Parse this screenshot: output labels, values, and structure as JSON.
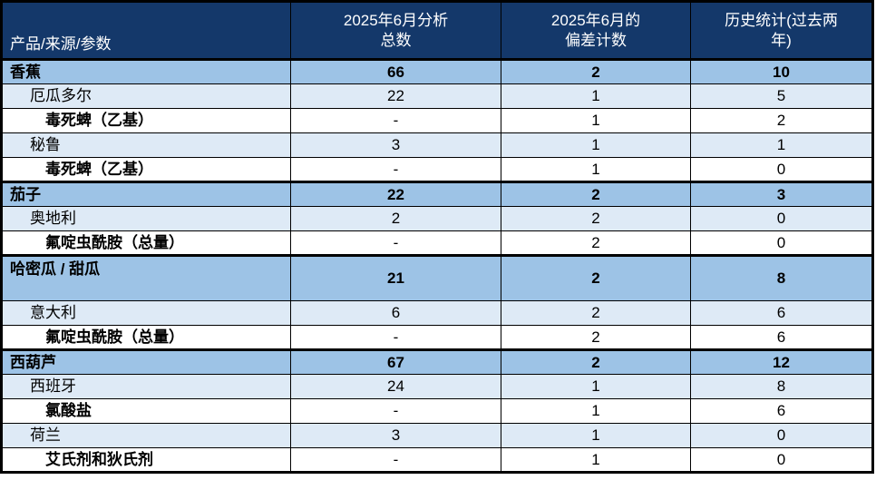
{
  "colors": {
    "header_bg": "#14386A",
    "product_row_bg": "#9DC3E6",
    "country_row_bg": "#DEEAF6",
    "parameter_row_bg": "#FFFFFF",
    "border": "#000000",
    "header_text": "#FFFFFF",
    "body_text": "#000000"
  },
  "table": {
    "columns": [
      {
        "label": "产品/来源/参数"
      },
      {
        "label": "2025年6月分析\n总数"
      },
      {
        "label": "2025年6月的\n偏差计数"
      },
      {
        "label": "历史统计(过去两\n年)"
      }
    ],
    "rows": [
      {
        "type": "product",
        "section": true,
        "tall": false,
        "label": "香蕉",
        "analyzed": "66",
        "deviations": "2",
        "historical": "10"
      },
      {
        "type": "country",
        "section": false,
        "tall": false,
        "label": "厄瓜多尔",
        "analyzed": "22",
        "deviations": "1",
        "historical": "5"
      },
      {
        "type": "parameter",
        "section": false,
        "tall": false,
        "label": "毒死蜱（乙基）",
        "analyzed": "-",
        "deviations": "1",
        "historical": "2"
      },
      {
        "type": "country",
        "section": false,
        "tall": false,
        "label": "秘鲁",
        "analyzed": "3",
        "deviations": "1",
        "historical": "1"
      },
      {
        "type": "parameter",
        "section": false,
        "tall": false,
        "label": "毒死蜱（乙基）",
        "analyzed": "-",
        "deviations": "1",
        "historical": "0"
      },
      {
        "type": "product",
        "section": true,
        "tall": false,
        "label": "茄子",
        "analyzed": "22",
        "deviations": "2",
        "historical": "3"
      },
      {
        "type": "country",
        "section": false,
        "tall": false,
        "label": "奥地利",
        "analyzed": "2",
        "deviations": "2",
        "historical": "0"
      },
      {
        "type": "parameter",
        "section": false,
        "tall": false,
        "label": "氟啶虫酰胺（总量）",
        "analyzed": "-",
        "deviations": "2",
        "historical": "0"
      },
      {
        "type": "product",
        "section": true,
        "tall": true,
        "label": "哈密瓜 / 甜瓜",
        "analyzed": "21",
        "deviations": "2",
        "historical": "8"
      },
      {
        "type": "country",
        "section": false,
        "tall": false,
        "label": "意大利",
        "analyzed": "6",
        "deviations": "2",
        "historical": "6"
      },
      {
        "type": "parameter",
        "section": false,
        "tall": false,
        "label": "氟啶虫酰胺（总量）",
        "analyzed": "-",
        "deviations": "2",
        "historical": "6"
      },
      {
        "type": "product",
        "section": true,
        "tall": false,
        "label": "西葫芦",
        "analyzed": "67",
        "deviations": "2",
        "historical": "12"
      },
      {
        "type": "country",
        "section": false,
        "tall": false,
        "label": "西班牙",
        "analyzed": "24",
        "deviations": "1",
        "historical": "8"
      },
      {
        "type": "parameter",
        "section": false,
        "tall": false,
        "label": "氯酸盐",
        "analyzed": "-",
        "deviations": "1",
        "historical": "6"
      },
      {
        "type": "country",
        "section": false,
        "tall": false,
        "label": "荷兰",
        "analyzed": "3",
        "deviations": "1",
        "historical": "0"
      },
      {
        "type": "parameter",
        "section": false,
        "tall": false,
        "label": "艾氏剂和狄氏剂",
        "analyzed": "-",
        "deviations": "1",
        "historical": "0"
      }
    ]
  }
}
